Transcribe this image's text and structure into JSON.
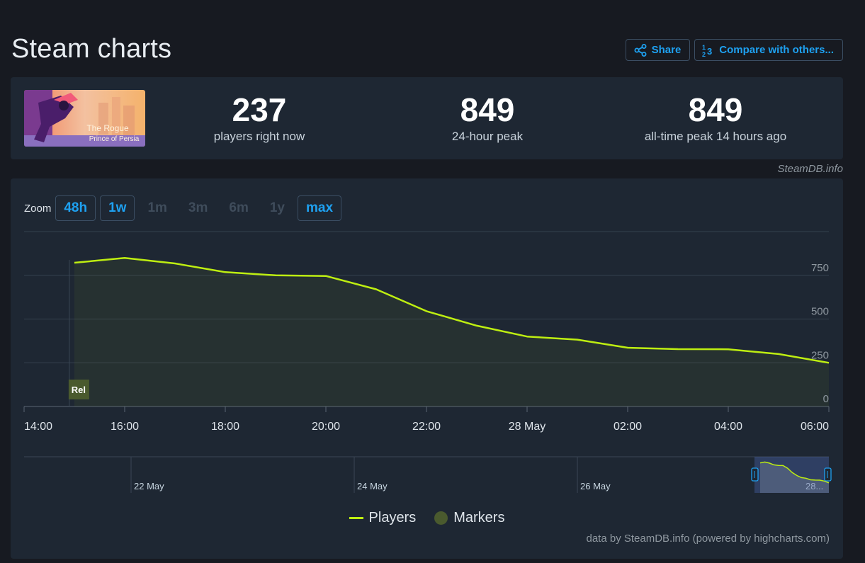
{
  "page": {
    "title": "Steam charts"
  },
  "actions": {
    "share_label": "Share",
    "compare_label": "Compare with others..."
  },
  "game": {
    "capsule_text_line1": "The Rogue",
    "capsule_text_line2": "Prince of Persia"
  },
  "stats": [
    {
      "value": "237",
      "label": "players right now"
    },
    {
      "value": "849",
      "label": "24-hour peak"
    },
    {
      "value": "849",
      "label": "all-time peak 14 hours ago"
    }
  ],
  "credit_steamdb": "SteamDB.info",
  "zoom": {
    "label": "Zoom",
    "options": [
      {
        "label": "48h",
        "state": "active"
      },
      {
        "label": "1w",
        "state": "active"
      },
      {
        "label": "1m",
        "state": "disabled"
      },
      {
        "label": "3m",
        "state": "disabled"
      },
      {
        "label": "6m",
        "state": "disabled"
      },
      {
        "label": "1y",
        "state": "disabled"
      },
      {
        "label": "max",
        "state": "active"
      }
    ]
  },
  "chart_data": {
    "type": "area",
    "title": "",
    "xlabel": "",
    "ylabel": "",
    "ylim": [
      0,
      1000
    ],
    "yticks": [
      0,
      250,
      500,
      750
    ],
    "xlim": [
      "2024-05-27T14:00",
      "2024-05-28T06:00"
    ],
    "xtick_labels": [
      "14:00",
      "16:00",
      "18:00",
      "20:00",
      "22:00",
      "28 May",
      "02:00",
      "04:00",
      "06:00"
    ],
    "grid": true,
    "series": [
      {
        "name": "Players",
        "color": "#beee11",
        "x": [
          "2024-05-27T15:00",
          "2024-05-27T16:00",
          "2024-05-27T17:00",
          "2024-05-27T18:00",
          "2024-05-27T19:00",
          "2024-05-27T20:00",
          "2024-05-27T21:00",
          "2024-05-27T22:00",
          "2024-05-27T23:00",
          "2024-05-28T00:00",
          "2024-05-28T01:00",
          "2024-05-28T02:00",
          "2024-05-28T03:00",
          "2024-05-28T04:00",
          "2024-05-28T05:00",
          "2024-05-28T06:00"
        ],
        "y": [
          822,
          849,
          818,
          768,
          750,
          746,
          670,
          545,
          462,
          400,
          382,
          336,
          328,
          327,
          300,
          250
        ]
      }
    ],
    "markers": [
      {
        "label": "Rel",
        "x": "2024-05-27T14:54"
      }
    ],
    "legend": {
      "placement": "bottom-center",
      "items": [
        "Players",
        "Markers"
      ],
      "marker_color": "#4a5a2e"
    },
    "navigator": {
      "labels": [
        "22 May",
        "24 May",
        "26 May",
        "28..."
      ]
    }
  },
  "credits": "data by SteamDB.info (powered by highcharts.com)"
}
